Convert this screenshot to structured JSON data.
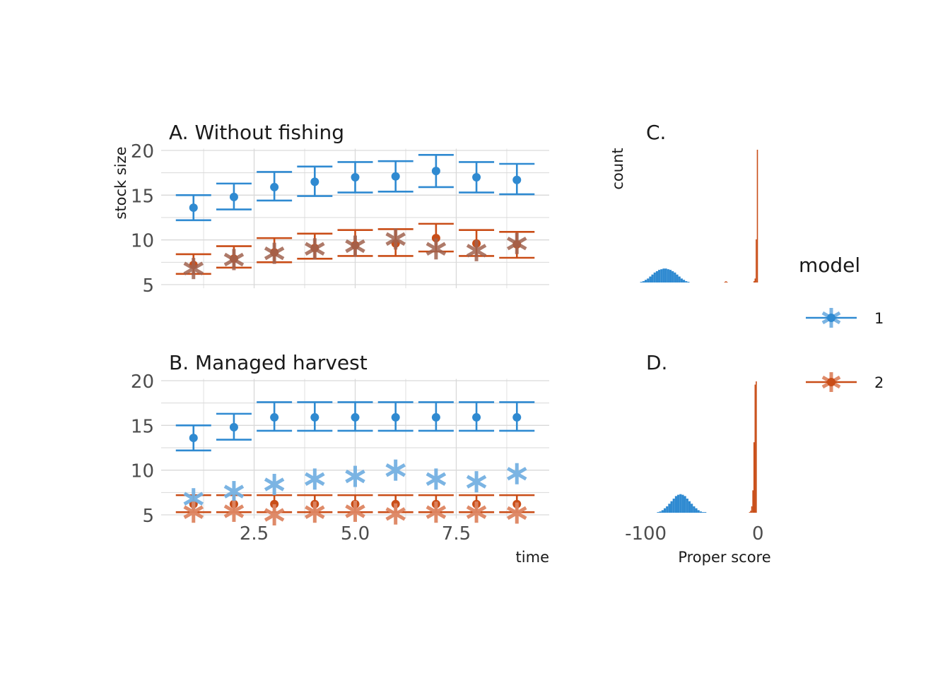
{
  "colors": {
    "model1": "#2F8AD1",
    "model2": "#C94D17",
    "model1_obs": "#74B1E2",
    "model2_obs": "#DE8562",
    "overlap": "#A06350",
    "grid": "#D9D9D9"
  },
  "chart_data": [
    {
      "panel": "A",
      "type": "scatter",
      "title": "A. Without fishing",
      "ylabel": "stock size",
      "xlim": [
        0.2,
        9.8
      ],
      "ylim": [
        4.6,
        20.2
      ],
      "yticks": [
        5,
        10,
        15,
        20
      ],
      "xticks": [
        2.5,
        5.0,
        7.5
      ],
      "series": [
        {
          "name": "1",
          "x": [
            1,
            2,
            3,
            4,
            5,
            6,
            7,
            8,
            9
          ],
          "mean": [
            13.6,
            14.8,
            15.9,
            16.5,
            17.0,
            17.1,
            17.7,
            17.0,
            16.7
          ],
          "low": [
            12.2,
            13.4,
            14.4,
            14.9,
            15.3,
            15.4,
            15.9,
            15.3,
            15.1
          ],
          "high": [
            15.0,
            16.3,
            17.6,
            18.2,
            18.7,
            18.8,
            19.5,
            18.7,
            18.5
          ]
        },
        {
          "name": "2",
          "x": [
            1,
            2,
            3,
            4,
            5,
            6,
            7,
            8,
            9
          ],
          "mean": [
            7.2,
            7.9,
            8.6,
            9.1,
            9.4,
            9.6,
            10.2,
            9.6,
            9.5
          ],
          "low": [
            6.2,
            6.9,
            7.5,
            7.9,
            8.2,
            8.2,
            8.7,
            8.2,
            8.0
          ],
          "high": [
            8.4,
            9.3,
            10.2,
            10.7,
            11.1,
            11.2,
            11.8,
            11.1,
            10.9
          ]
        }
      ],
      "observations": {
        "x": [
          1,
          2,
          3,
          4,
          5,
          6,
          7,
          8,
          9
        ],
        "y": [
          6.8,
          7.8,
          8.5,
          9.0,
          9.3,
          10.1,
          9.0,
          8.8,
          9.6
        ]
      }
    },
    {
      "panel": "B",
      "type": "scatter",
      "title": "B. Managed harvest",
      "xlabel": "time",
      "xlim": [
        0.2,
        9.8
      ],
      "ylim": [
        4.6,
        20.2
      ],
      "yticks": [
        5,
        10,
        15,
        20
      ],
      "xticks": [
        2.5,
        5.0,
        7.5
      ],
      "xticklabels": [
        "2.5",
        "5.0",
        "7.5"
      ],
      "series": [
        {
          "name": "1",
          "x": [
            1,
            2,
            3,
            4,
            5,
            6,
            7,
            8,
            9
          ],
          "mean": [
            13.6,
            14.8,
            15.9,
            15.9,
            15.9,
            15.9,
            15.9,
            15.9,
            15.9
          ],
          "low": [
            12.2,
            13.4,
            14.4,
            14.4,
            14.4,
            14.4,
            14.4,
            14.4,
            14.4
          ],
          "high": [
            15.0,
            16.3,
            17.6,
            17.6,
            17.6,
            17.6,
            17.6,
            17.6,
            17.6
          ]
        },
        {
          "name": "2",
          "x": [
            1,
            2,
            3,
            4,
            5,
            6,
            7,
            8,
            9
          ],
          "mean": [
            6.2,
            6.2,
            6.2,
            6.2,
            6.2,
            6.2,
            6.2,
            6.2,
            6.2
          ],
          "low": [
            5.3,
            5.3,
            5.3,
            5.3,
            5.3,
            5.3,
            5.3,
            5.3,
            5.3
          ],
          "high": [
            7.2,
            7.2,
            7.2,
            7.2,
            7.2,
            7.2,
            7.2,
            7.2,
            7.2
          ]
        }
      ],
      "observations_model1": {
        "x": [
          1,
          2,
          3,
          4,
          5,
          6,
          7,
          8,
          9
        ],
        "y": [
          6.8,
          7.6,
          8.4,
          9.0,
          9.3,
          10.0,
          9.0,
          8.7,
          9.6
        ]
      },
      "observations_model2": {
        "x": [
          1,
          2,
          3,
          4,
          5,
          6,
          7,
          8,
          9
        ],
        "y": [
          5.3,
          5.4,
          5.0,
          5.3,
          5.4,
          5.1,
          5.3,
          5.3,
          5.2
        ]
      }
    },
    {
      "panel": "C",
      "type": "bar",
      "title": "C.",
      "ylabel": "count",
      "xlim": [
        -118,
        8
      ],
      "series": [
        {
          "name": "1",
          "x_start": -105,
          "bin_width": 2,
          "counts": [
            1,
            2,
            4,
            6,
            9,
            12,
            15,
            17,
            19,
            20,
            21,
            21,
            20,
            19,
            17,
            15,
            12,
            9,
            6,
            4,
            2,
            1,
            0,
            0,
            0,
            0,
            0,
            0,
            0,
            0,
            0,
            0,
            0,
            0,
            0,
            0,
            0,
            0,
            0,
            0,
            0,
            0,
            0,
            0,
            0,
            0,
            0,
            0,
            0,
            0,
            0
          ]
        },
        {
          "name": "2",
          "x_start": -30,
          "bin_width": 1,
          "counts": [
            1,
            2,
            1,
            0,
            0,
            0,
            0,
            0,
            0,
            0,
            0,
            0,
            0,
            0,
            0,
            0,
            0,
            0,
            0,
            0,
            0,
            0,
            0,
            0,
            0,
            0,
            2,
            6,
            65,
            200
          ]
        }
      ],
      "ymax": 200
    },
    {
      "panel": "D",
      "type": "bar",
      "title": "D.",
      "xlabel": "Proper score",
      "xlim": [
        -118,
        8
      ],
      "xticks": [
        -100,
        0
      ],
      "series": [
        {
          "name": "1",
          "x_start": -90,
          "bin_width": 2,
          "counts": [
            1,
            2,
            4,
            7,
            10,
            14,
            18,
            22,
            26,
            28,
            29,
            28,
            26,
            22,
            18,
            14,
            10,
            7,
            4,
            2,
            1,
            1
          ]
        },
        {
          "name": "2",
          "x_start": -8,
          "bin_width": 1,
          "counts": [
            1,
            3,
            10,
            35,
            110,
            200,
            205,
            0
          ]
        }
      ],
      "ymax": 205
    }
  ],
  "legend": {
    "title": "model",
    "entries": [
      "1",
      "2"
    ]
  }
}
